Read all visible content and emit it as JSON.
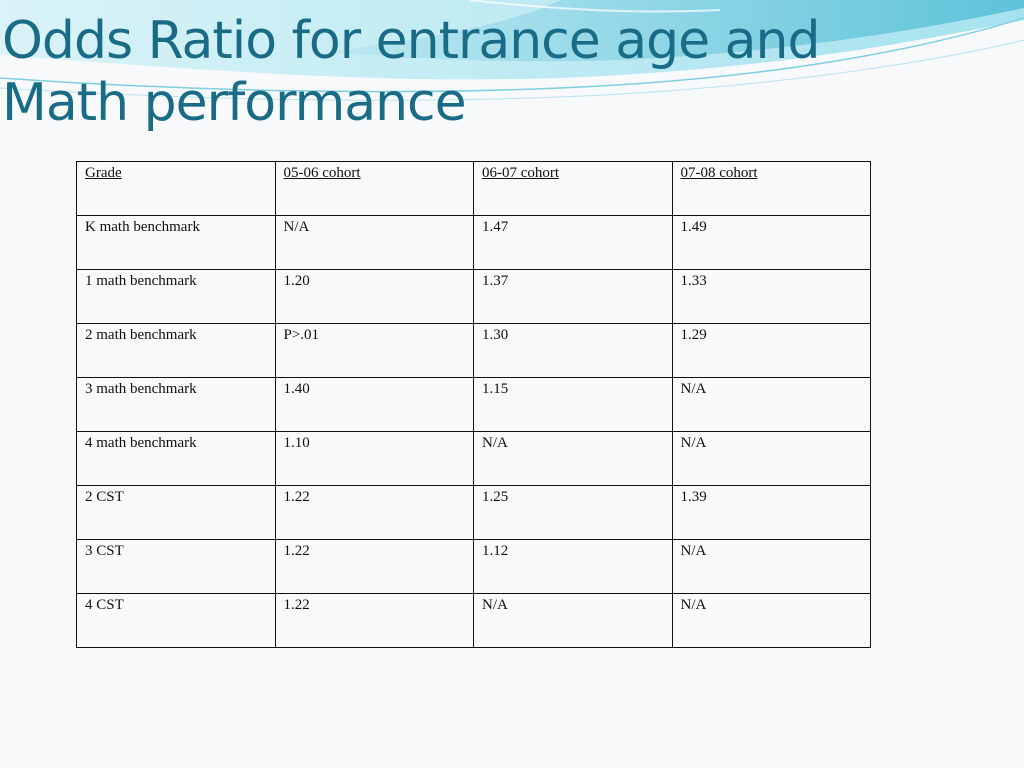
{
  "slide": {
    "title_line1": "Odds Ratio for entrance age and",
    "title_line2": "Math performance",
    "accent_color": "#1a6b86"
  },
  "table": {
    "headers": [
      "Grade",
      "05-06 cohort",
      "06-07 cohort",
      "07-08 cohort"
    ],
    "rows": [
      [
        "K math benchmark",
        "N/A",
        "1.47",
        "1.49"
      ],
      [
        "1 math benchmark",
        "1.20",
        "1.37",
        "1.33"
      ],
      [
        "2 math benchmark",
        "P>.01",
        "1.30",
        "1.29"
      ],
      [
        "3 math benchmark",
        "1.40",
        "1.15",
        "N/A"
      ],
      [
        "4 math benchmark",
        "1.10",
        "N/A",
        "N/A"
      ],
      [
        "2 CST",
        "1.22",
        "1.25",
        "1.39"
      ],
      [
        "3 CST",
        "1.22",
        "1.12",
        "N/A"
      ],
      [
        "4 CST",
        "1.22",
        "N/A",
        "N/A"
      ]
    ]
  }
}
